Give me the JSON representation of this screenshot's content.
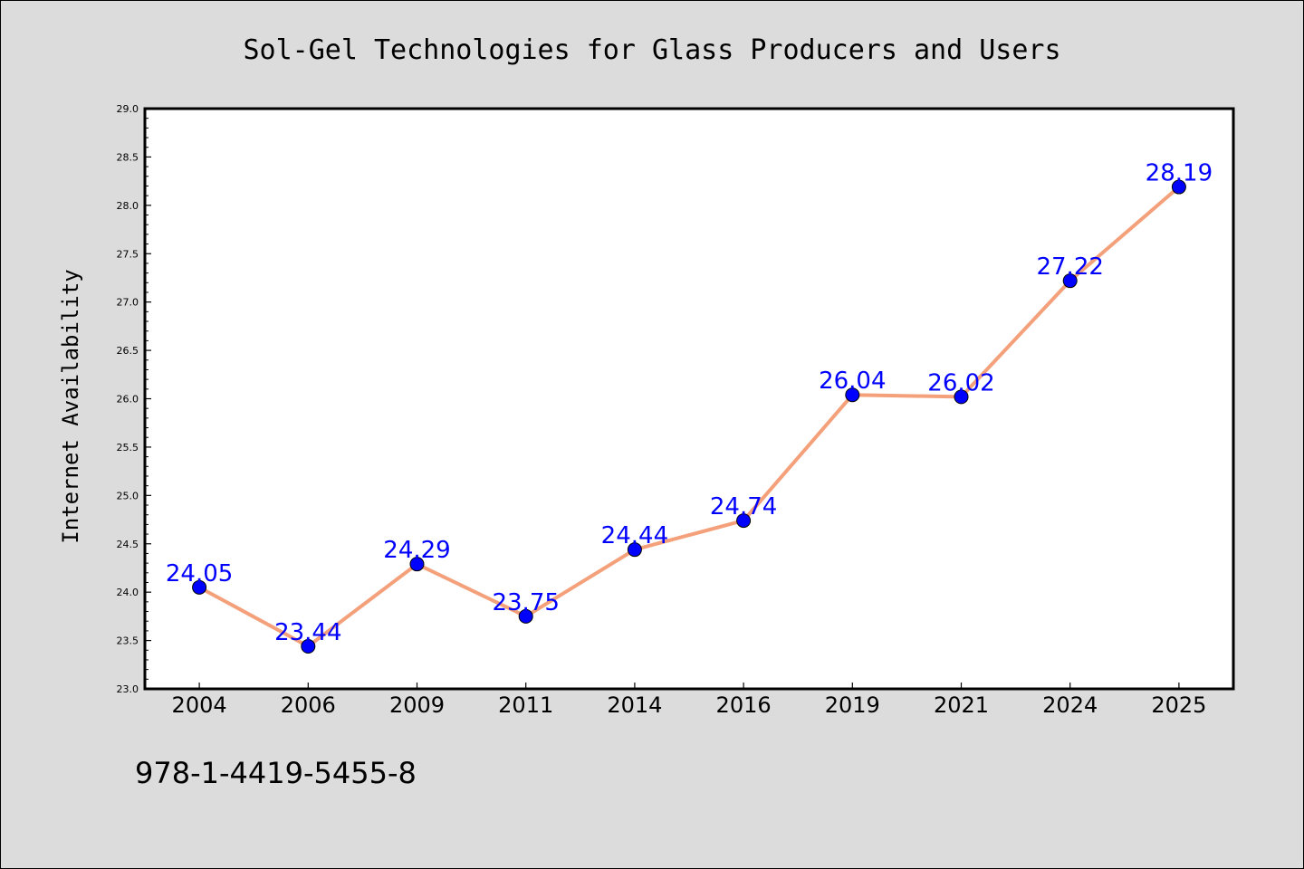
{
  "chart_data": {
    "type": "line",
    "title": "Sol-Gel Technologies for Glass Producers and Users",
    "xlabel": "",
    "ylabel": "Internet Availability",
    "categories": [
      "2004",
      "2006",
      "2009",
      "2011",
      "2014",
      "2016",
      "2019",
      "2021",
      "2024",
      "2025"
    ],
    "series": [
      {
        "values": [
          24.05,
          23.44,
          24.29,
          23.75,
          24.44,
          24.74,
          26.04,
          26.02,
          27.22,
          28.19
        ],
        "data_labels": [
          "24.05",
          "23.44",
          "24.29",
          "23.75",
          "24.44",
          "24.74",
          "26.04",
          "26.02",
          "27.22",
          "28.19"
        ]
      }
    ],
    "ylim": [
      23.0,
      29.0
    ],
    "yticks": [
      "23.0",
      "23.5",
      "24.0",
      "24.5",
      "25.0",
      "25.5",
      "26.0",
      "26.5",
      "27.0",
      "27.5",
      "28.0",
      "28.5",
      "29.0"
    ],
    "grid": false,
    "legend": "none",
    "line_color": "#f4a07a",
    "marker_color": "#0000ff",
    "label_color": "#0000ff",
    "background_color": "#dcdcdc",
    "plot_background": "#ffffff"
  },
  "footer": {
    "isbn": "978-1-4419-5455-8"
  }
}
